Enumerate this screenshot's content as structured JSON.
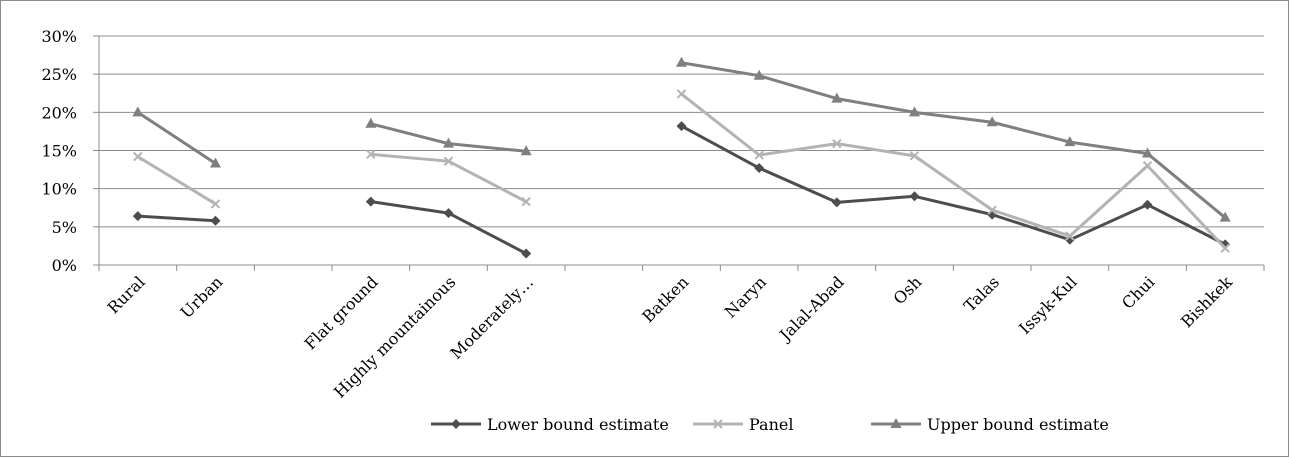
{
  "chart_data": {
    "type": "line",
    "title": "",
    "xlabel": "",
    "ylabel": "",
    "ylim": [
      0,
      30
    ],
    "yticks": [
      "0%",
      "5%",
      "10%",
      "15%",
      "20%",
      "25%",
      "30%"
    ],
    "ytick_values": [
      0,
      5,
      10,
      15,
      20,
      25,
      30
    ],
    "categories": [
      "Rural",
      "Urban",
      "",
      "Flat ground",
      "Highly mountainous",
      "Moderately…",
      "",
      "Batken",
      "Naryn",
      "Jalal-Abad",
      "Osh",
      "Talas",
      "Issyk-Kul",
      "Chui",
      "Bishkek"
    ],
    "grid": true,
    "legend_position": "bottom",
    "series": [
      {
        "name": "Lower bound estimate",
        "color": "#4d4d4d",
        "marker": "diamond",
        "values": [
          6.4,
          5.8,
          null,
          8.3,
          6.8,
          1.5,
          null,
          18.2,
          12.7,
          8.2,
          9.0,
          6.6,
          3.3,
          7.9,
          2.7
        ]
      },
      {
        "name": "Panel",
        "color": "#b3b3b3",
        "marker": "x",
        "values": [
          14.2,
          8.0,
          null,
          14.5,
          13.6,
          8.3,
          null,
          22.4,
          14.4,
          15.9,
          14.3,
          7.2,
          3.8,
          13.0,
          2.2
        ]
      },
      {
        "name": "Upper bound estimate",
        "color": "#7f7f7f",
        "marker": "triangle",
        "values": [
          20.0,
          13.3,
          null,
          18.5,
          15.9,
          14.9,
          null,
          26.5,
          24.8,
          21.8,
          20.0,
          18.7,
          16.1,
          14.6,
          6.2
        ]
      }
    ]
  }
}
